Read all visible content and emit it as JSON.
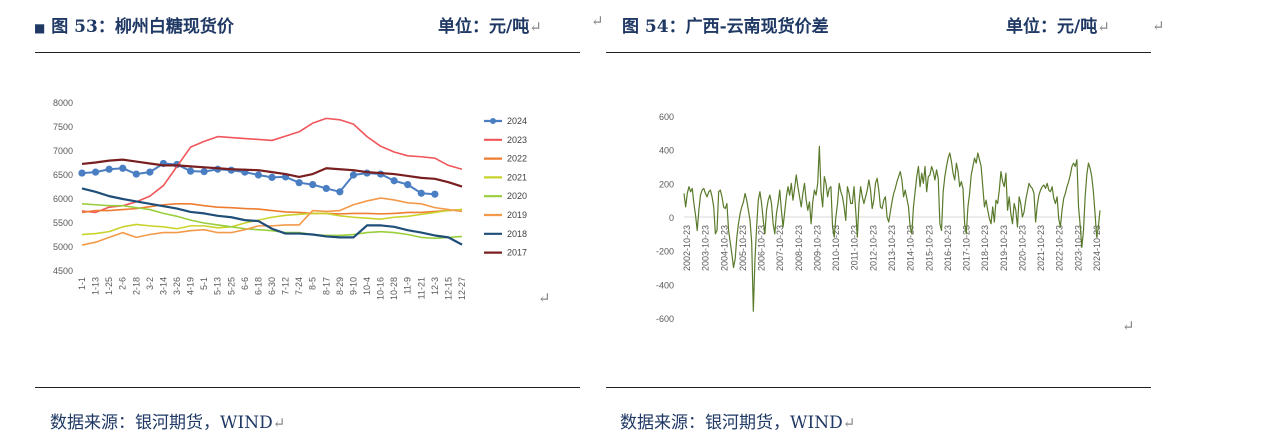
{
  "left": {
    "title": "图 53：柳州白糖现货价",
    "unit": "单位：元/吨",
    "source": "数据来源：银河期货，WIND",
    "marker": "■"
  },
  "right": {
    "title": "图 54：广西-云南现货价差",
    "unit": "单位：元/吨",
    "source": "数据来源：银河期货，WIND"
  },
  "return_glyph": "↵",
  "chart_data": [
    {
      "type": "line",
      "y_ticks": [
        4500,
        5000,
        5500,
        6000,
        6500,
        7000,
        7500,
        8000
      ],
      "ylim": [
        4500,
        8000
      ],
      "categories": [
        "1-1",
        "1-13",
        "1-25",
        "2-6",
        "2-18",
        "3-2",
        "3-14",
        "3-26",
        "4-19",
        "5-1",
        "5-13",
        "5-25",
        "6-6",
        "6-18",
        "6-30",
        "7-12",
        "7-24",
        "8-5",
        "8-17",
        "8-29",
        "9-10",
        "10-4",
        "10-16",
        "10-28",
        "11-9",
        "11-21",
        "12-3",
        "12-15",
        "12-27"
      ],
      "legend_position": "right",
      "series": [
        {
          "name": "2024",
          "color": "#4a7ec2",
          "values": [
            6540,
            6560,
            6620,
            6640,
            6520,
            6560,
            6740,
            6720,
            6580,
            6570,
            6620,
            6600,
            6560,
            6500,
            6450,
            6460,
            6340,
            6300,
            6220,
            6150,
            6500,
            6540,
            6520,
            6380,
            6300,
            6120,
            6100,
            null,
            null
          ]
        },
        {
          "name": "2023",
          "color": "#f0565a",
          "values": [
            5750,
            5720,
            5830,
            5860,
            5940,
            6060,
            6280,
            6680,
            7080,
            7200,
            7300,
            7280,
            7260,
            7240,
            7220,
            7310,
            7400,
            7580,
            7680,
            7650,
            7560,
            7300,
            7100,
            6980,
            6900,
            6880,
            6850,
            6700,
            6620
          ]
        },
        {
          "name": "2022",
          "color": "#ed7d31",
          "values": [
            5720,
            5760,
            5760,
            5780,
            5800,
            5840,
            5880,
            5900,
            5900,
            5860,
            5830,
            5820,
            5800,
            5790,
            5760,
            5730,
            5720,
            5700,
            5700,
            5690,
            5700,
            5700,
            5690,
            5700,
            5720,
            5720,
            5740,
            5760,
            5780
          ]
        },
        {
          "name": "2021",
          "color": "#c9d32c",
          "values": [
            5260,
            5280,
            5320,
            5420,
            5470,
            5440,
            5420,
            5380,
            5440,
            5440,
            5400,
            5420,
            5500,
            5560,
            5620,
            5660,
            5680,
            5700,
            5700,
            5650,
            5620,
            5600,
            5580,
            5620,
            5640,
            5680,
            5720,
            5760,
            5780
          ]
        },
        {
          "name": "2020",
          "color": "#9ace3c",
          "values": [
            5900,
            5880,
            5860,
            5860,
            5820,
            5780,
            5700,
            5640,
            5560,
            5500,
            5460,
            5420,
            5380,
            5360,
            5340,
            5300,
            5300,
            5260,
            5240,
            5240,
            5260,
            5300,
            5320,
            5300,
            5260,
            5200,
            5180,
            5200,
            5220
          ]
        },
        {
          "name": "2019",
          "color": "#f39a4a",
          "values": [
            5040,
            5100,
            5200,
            5300,
            5200,
            5260,
            5300,
            5300,
            5340,
            5360,
            5300,
            5300,
            5360,
            5440,
            5440,
            5460,
            5460,
            5760,
            5740,
            5760,
            5880,
            5960,
            6020,
            5980,
            5920,
            5900,
            5820,
            5780,
            5740
          ]
        },
        {
          "name": "2018",
          "color": "#1f4e79",
          "values": [
            6220,
            6150,
            6060,
            6000,
            5950,
            5900,
            5850,
            5800,
            5730,
            5700,
            5650,
            5620,
            5560,
            5540,
            5380,
            5280,
            5280,
            5260,
            5220,
            5200,
            5200,
            5450,
            5450,
            5420,
            5350,
            5300,
            5240,
            5200,
            5050
          ]
        },
        {
          "name": "2017",
          "color": "#7a1f1f",
          "values": [
            6730,
            6760,
            6800,
            6820,
            6780,
            6740,
            6700,
            6700,
            6680,
            6660,
            6640,
            6620,
            6610,
            6600,
            6560,
            6520,
            6460,
            6520,
            6640,
            6620,
            6600,
            6560,
            6540,
            6520,
            6480,
            6440,
            6420,
            6350,
            6260
          ]
        }
      ]
    },
    {
      "type": "line",
      "y_ticks": [
        -600,
        -400,
        -200,
        0,
        200,
        400,
        600
      ],
      "ylim": [
        -600,
        600
      ],
      "x_ticks": [
        "2002-10-23",
        "2003-10-23",
        "2004-10-23",
        "2005-10-23",
        "2006-10-23",
        "2007-10-23",
        "2008-10-23",
        "2009-10-23",
        "2010-10-23",
        "2011-10-23",
        "2012-10-23",
        "2013-10-23",
        "2014-10-23",
        "2015-10-23",
        "2016-10-23",
        "2017-10-23",
        "2018-10-23",
        "2019-10-23",
        "2020-10-23",
        "2021-10-23",
        "2022-10-23",
        "2023-10-23",
        "2024-10-23"
      ],
      "color": "#5a7a2b",
      "series": [
        {
          "values": [
            140,
            60,
            140,
            180,
            150,
            170,
            80,
            10,
            -80,
            40,
            130,
            160,
            170,
            140,
            120,
            150,
            160,
            120,
            60,
            -100,
            -80,
            150,
            160,
            120,
            60,
            50,
            80,
            -80,
            -150,
            -220,
            -300,
            -250,
            -120,
            -40,
            20,
            60,
            90,
            140,
            100,
            40,
            -20,
            -150,
            -560,
            -250,
            -60,
            100,
            150,
            80,
            -20,
            -100,
            40,
            100,
            130,
            80,
            -40,
            -100,
            20,
            80,
            160,
            40,
            -60,
            30,
            120,
            180,
            130,
            200,
            100,
            170,
            250,
            180,
            120,
            60,
            140,
            200,
            100,
            40,
            90,
            -40,
            90,
            160,
            130,
            200,
            420,
            150,
            60,
            240,
            200,
            120,
            170,
            180,
            -60,
            -120,
            0,
            80,
            200,
            150,
            120,
            60,
            -20,
            180,
            140,
            80,
            80,
            180,
            40,
            -120,
            80,
            180,
            120,
            80,
            120,
            160,
            220,
            160,
            50,
            100,
            200,
            230,
            160,
            60,
            50,
            100,
            120,
            0,
            -30,
            30,
            90,
            140,
            170,
            210,
            240,
            270,
            220,
            120,
            160,
            110,
            60,
            -60,
            -100,
            60,
            150,
            240,
            300,
            180,
            260,
            200,
            300,
            150,
            240,
            250,
            300,
            270,
            220,
            280,
            230,
            -40,
            -80,
            150,
            240,
            300,
            350,
            380,
            330,
            260,
            220,
            320,
            270,
            180,
            210,
            170,
            -40,
            -100,
            60,
            140,
            250,
            300,
            350,
            320,
            380,
            340,
            300,
            180,
            60,
            100,
            40,
            -10,
            -40,
            60,
            -30,
            100,
            80,
            160,
            270,
            210,
            180,
            260,
            40,
            120,
            20,
            -40,
            80,
            40,
            -60,
            120,
            80,
            0,
            30,
            100,
            150,
            200,
            180,
            170,
            140,
            -30,
            70,
            130,
            160,
            180,
            190,
            170,
            200,
            160,
            150,
            180,
            110,
            80,
            120,
            -10,
            -60,
            40,
            110,
            140,
            180,
            210,
            250,
            300,
            320,
            300,
            340,
            60,
            -50,
            -180,
            -80,
            120,
            250,
            320,
            290,
            240,
            150,
            20,
            -120,
            -60,
            40
          ]
        }
      ]
    }
  ]
}
